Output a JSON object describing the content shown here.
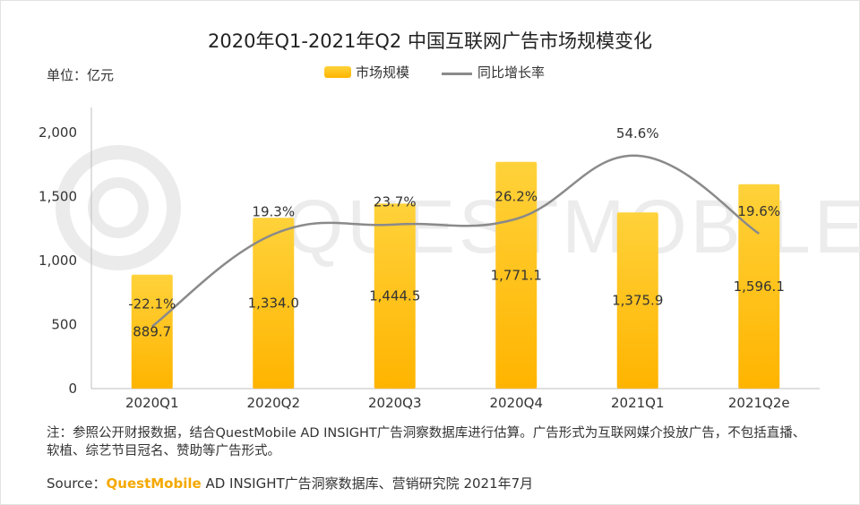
{
  "chart_data": {
    "type": "bar",
    "title": "2020年Q1-2021年Q2 中国互联网广告市场规模变化",
    "unit_label": "单位：亿元",
    "categories": [
      "2020Q1",
      "2020Q2",
      "2020Q3",
      "2020Q4",
      "2021Q1",
      "2021Q2e"
    ],
    "series": [
      {
        "name": "市场规模",
        "kind": "bar",
        "values": [
          889.7,
          1334.0,
          1444.5,
          1771.1,
          1375.9,
          1596.1
        ],
        "labels": [
          "889.7",
          "1,334.0",
          "1,444.5",
          "1,771.1",
          "1,375.9",
          "1,596.1"
        ],
        "color": "#ffc000"
      },
      {
        "name": "同比增长率",
        "kind": "line",
        "values": [
          -22.1,
          19.3,
          23.7,
          26.2,
          54.6,
          19.6
        ],
        "labels": [
          "-22.1%",
          "19.3%",
          "23.7%",
          "26.2%",
          "54.6%",
          "19.6%"
        ],
        "color": "#8a8a8a"
      }
    ],
    "yticks": [
      "0",
      "500",
      "1,000",
      "1,500",
      "2,000"
    ],
    "ytick_values": [
      0,
      500,
      1000,
      1500,
      2000
    ],
    "ylim": [
      0,
      2000
    ],
    "line_ylim": [
      -50,
      65
    ],
    "grid": false,
    "legend": "top-center"
  },
  "watermark": "QUESTMOBILE",
  "note": "注：参照公开财报数据，结合QuestMobile AD INSIGHT广告洞察数据库进行估算。广告形式为互联网媒介投放广告，不包括直播、软植、综艺节目冠名、赞助等广告形式。",
  "source": {
    "prefix": "Source：",
    "brand": "QuestMobile",
    "rest": " AD INSIGHT广告洞察数据库、营销研究院 2021年7月"
  },
  "colors": {
    "bar_top": "#ffd23a",
    "bar_bottom": "#ffb400",
    "line": "#8a8a8a",
    "axis": "#bfbfbf"
  }
}
